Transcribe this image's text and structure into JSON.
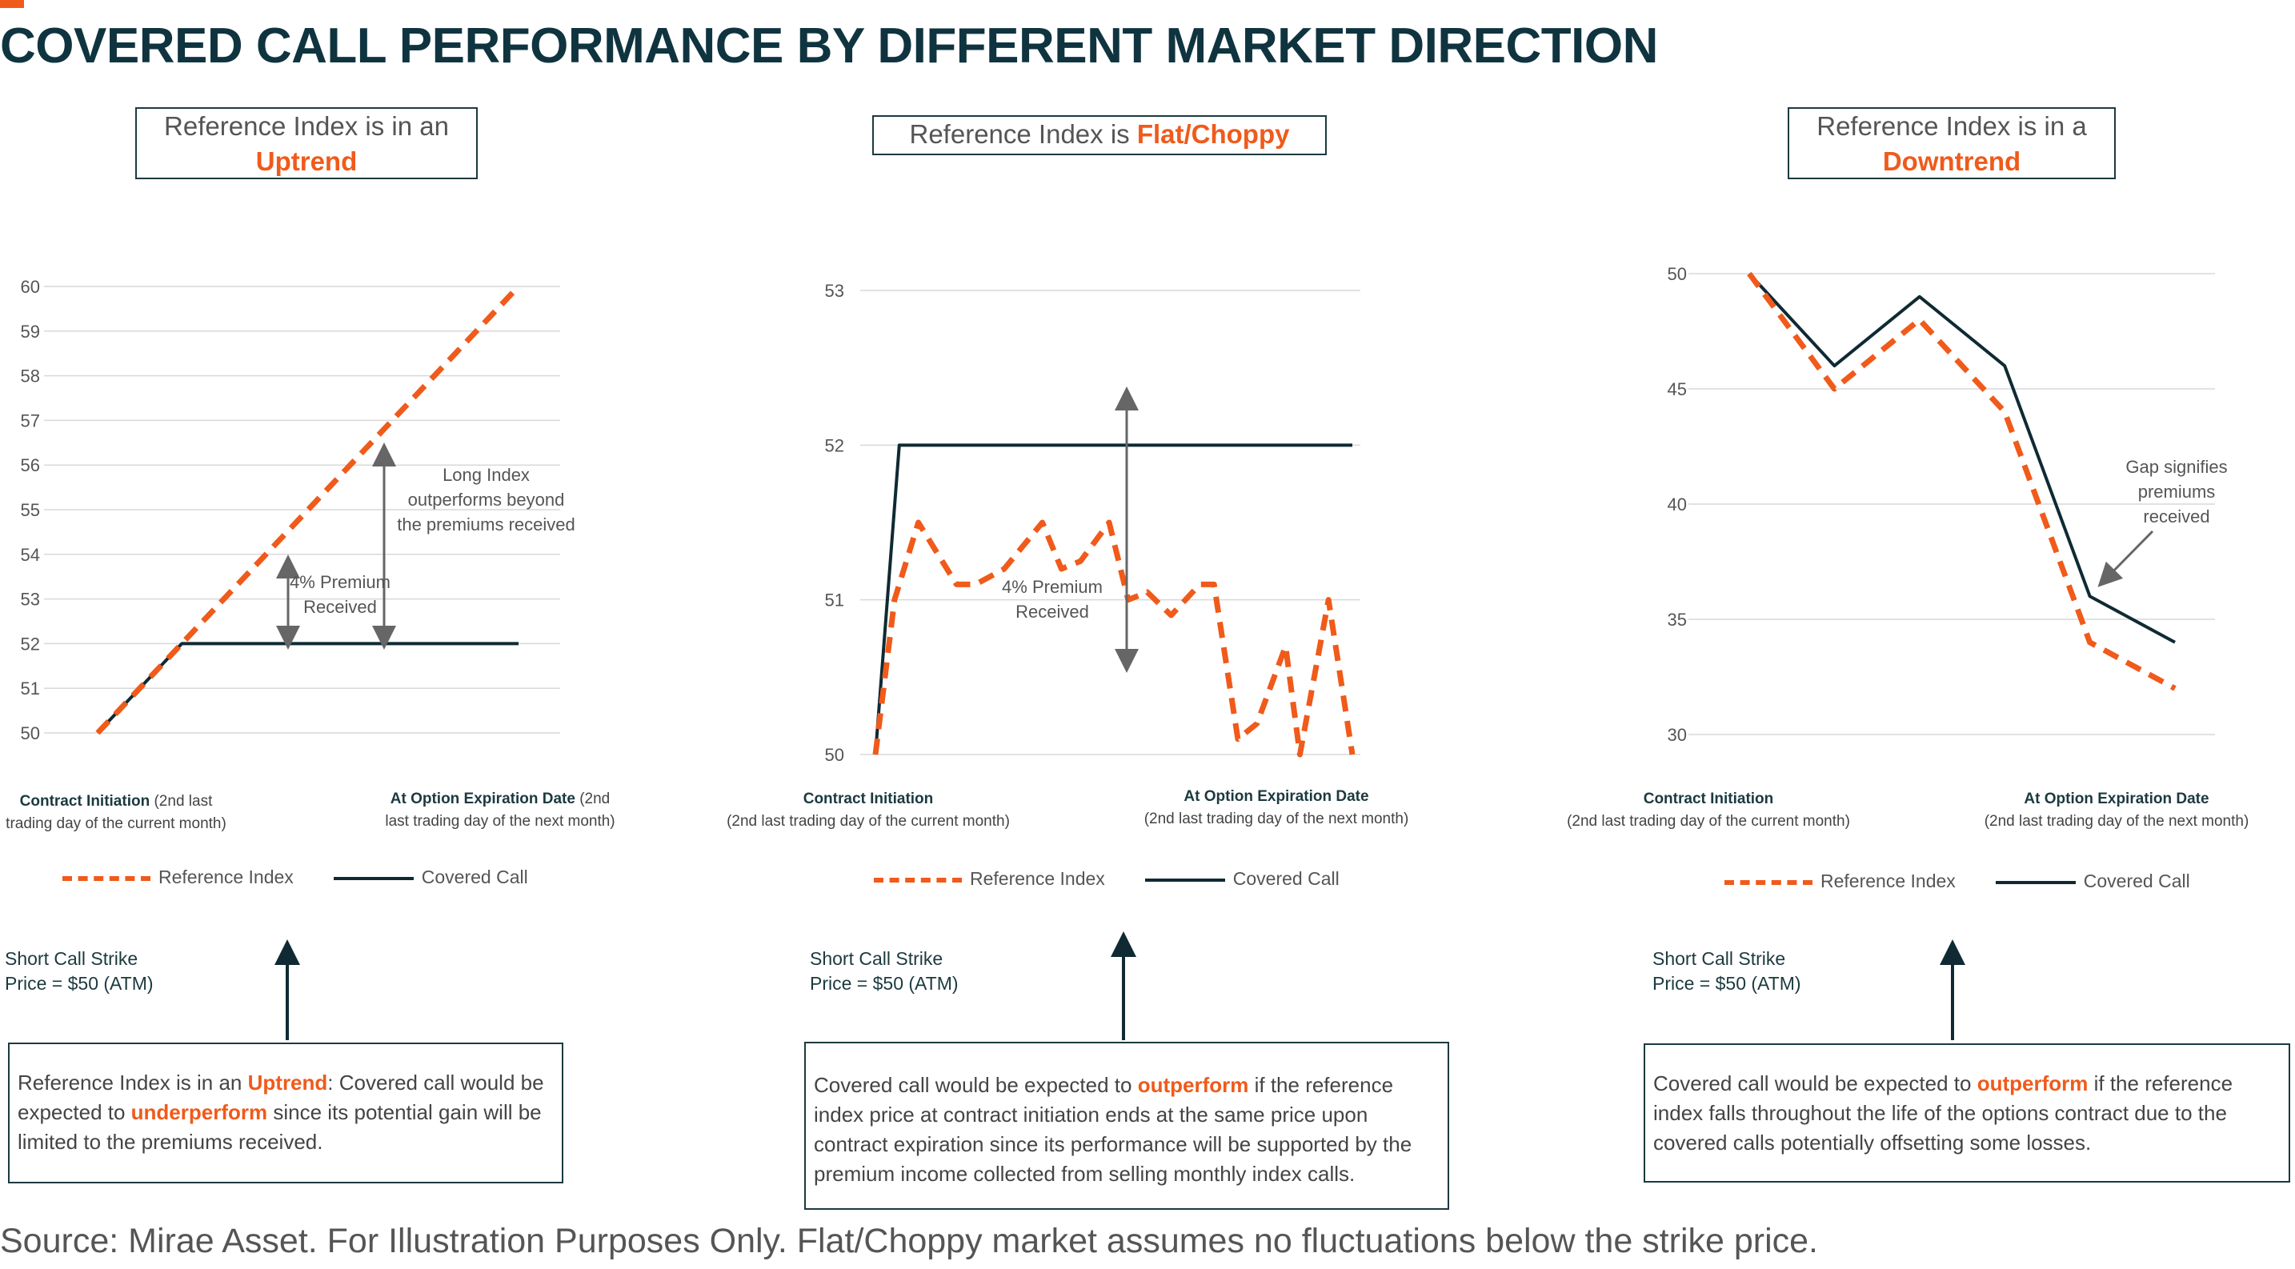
{
  "title": "COVERED CALL PERFORMANCE BY DIFFERENT MARKET DIRECTION",
  "source": "Source: Mirae Asset. For Illustration Purposes Only. Flat/Choppy market assumes no fluctuations below the strike price.",
  "colors": {
    "accent": "#f05a1a",
    "dark": "#0f2a33",
    "grid": "#d9d9d9"
  },
  "legend": {
    "reference": "Reference Index",
    "covered": "Covered Call"
  },
  "strike_label": [
    "Short Call Strike",
    "Price = $50 (ATM)"
  ],
  "panels": [
    {
      "header": {
        "prefix": "Reference Index is in an",
        "highlight": "Uptrend"
      },
      "xlabels": {
        "start_bold": "Contract Initiation",
        "start_rest": " (2nd last",
        "start_line2": "trading day of the current month)",
        "end_bold": "At Option Expiration Date",
        "end_rest": " (2nd",
        "end_line2": "last trading day of the next month)"
      },
      "annotations": [
        {
          "lines": [
            "4% Premium",
            "Received"
          ]
        },
        {
          "lines": [
            "Long Index",
            "outperforms beyond",
            "the premiums received"
          ]
        }
      ],
      "description": {
        "p1": "Reference Index is in an ",
        "h1": "Uptrend",
        "p2": ": Covered call would be expected to ",
        "h2": "underperform",
        "p3": " since its potential gain will be limited to the premiums received."
      }
    },
    {
      "header": {
        "prefix": "Reference Index is ",
        "highlight": "Flat/Choppy"
      },
      "xlabels": {
        "start_bold": "Contract Initiation",
        "start_line2": "(2nd last trading day of the current month)",
        "end_bold": "At Option Expiration Date",
        "end_line2": "(2nd last trading day of the next month)"
      },
      "annotations": [
        {
          "lines": [
            "4% Premium",
            "Received"
          ]
        }
      ],
      "description": {
        "p1": "Covered call would be expected to ",
        "h1": "outperform",
        "p2": " if the reference index price at contract initiation ends at the same price upon contract expiration since its performance will be supported by the premium income collected from selling monthly index calls."
      }
    },
    {
      "header": {
        "prefix": "Reference Index is in a",
        "highlight": "Downtrend"
      },
      "xlabels": {
        "start_bold": "Contract Initiation",
        "start_line2": "(2nd last trading day of the current month)",
        "end_bold": "At Option Expiration Date",
        "end_line2": "(2nd last trading day of the next month)"
      },
      "annotations": [
        {
          "lines": [
            "Gap signifies",
            "premiums",
            "received"
          ]
        }
      ],
      "description": {
        "p1": "Covered call would be expected to ",
        "h1": "outperform",
        "p2": " if the reference index falls throughout the life of the options contract due to the covered calls potentially offsetting some losses."
      }
    }
  ],
  "chart_data": [
    {
      "type": "line",
      "title": "",
      "ylim": [
        50,
        60
      ],
      "yticks": [
        50,
        51,
        52,
        53,
        54,
        55,
        56,
        57,
        58,
        59,
        60
      ],
      "grid": true,
      "legend_position": "bottom",
      "series": [
        {
          "name": "Reference Index",
          "style": "dashed",
          "color": "#f05a1a",
          "x": [
            0,
            0.2,
            1
          ],
          "y": [
            50,
            52,
            60
          ]
        },
        {
          "name": "Covered Call",
          "style": "solid",
          "color": "#0f2a33",
          "x": [
            0,
            0.2,
            1
          ],
          "y": [
            50,
            52,
            52
          ]
        }
      ]
    },
    {
      "type": "line",
      "title": "",
      "ylim": [
        50,
        53
      ],
      "yticks": [
        50,
        51,
        52,
        53
      ],
      "grid": true,
      "legend_position": "bottom",
      "series": [
        {
          "name": "Reference Index",
          "style": "dashed",
          "color": "#f05a1a",
          "x": [
            0,
            0.04,
            0.09,
            0.17,
            0.21,
            0.27,
            0.35,
            0.39,
            0.43,
            0.49,
            0.53,
            0.57,
            0.62,
            0.68,
            0.71,
            0.76,
            0.8,
            0.86,
            0.89,
            0.95,
            1
          ],
          "y": [
            50,
            51,
            51.5,
            51.1,
            51.1,
            51.2,
            51.5,
            51.2,
            51.25,
            51.5,
            51.0,
            51.05,
            50.9,
            51.1,
            51.1,
            50.1,
            50.2,
            50.7,
            50.0,
            51.0,
            50.0
          ]
        },
        {
          "name": "Covered Call",
          "style": "solid",
          "color": "#0f2a33",
          "x": [
            0,
            0.05,
            1
          ],
          "y": [
            50,
            52,
            52
          ]
        }
      ]
    },
    {
      "type": "line",
      "title": "",
      "ylim": [
        30,
        50
      ],
      "yticks": [
        30,
        35,
        40,
        45,
        50
      ],
      "grid": true,
      "legend_position": "bottom",
      "series": [
        {
          "name": "Reference Index",
          "style": "dashed",
          "color": "#f05a1a",
          "x": [
            0,
            0.2,
            0.4,
            0.6,
            0.8,
            1
          ],
          "y": [
            50,
            45,
            48,
            44,
            34,
            32
          ]
        },
        {
          "name": "Covered Call",
          "style": "solid",
          "color": "#0f2a33",
          "x": [
            0,
            0.2,
            0.4,
            0.6,
            0.8,
            1
          ],
          "y": [
            50,
            46,
            49,
            46,
            36,
            34
          ]
        }
      ]
    }
  ]
}
